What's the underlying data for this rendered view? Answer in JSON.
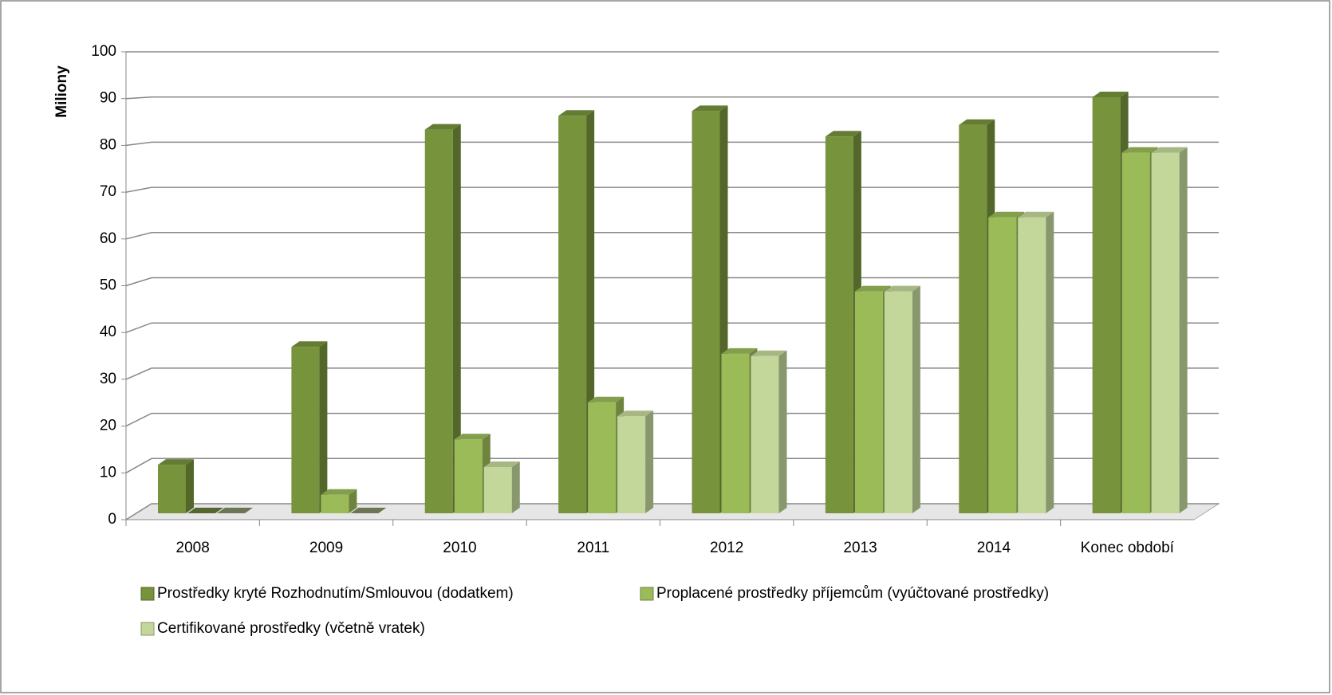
{
  "chart_data": {
    "type": "bar3d",
    "y_label": "Miliony",
    "categories": [
      "2008",
      "2009",
      "2010",
      "2011",
      "2012",
      "2013",
      "2014",
      "Konec období"
    ],
    "series": [
      {
        "name": "Prostředky kryté Rozhodnutím/Smlouvou (dodatkem)",
        "color": "#77933c",
        "values": [
          10.5,
          36,
          83,
          86,
          87,
          81.5,
          84,
          90
        ]
      },
      {
        "name": "Proplacené prostředky příjemcům (vyúčtované prostředky)",
        "color": "#9bbb59",
        "values": [
          0,
          4,
          16,
          24,
          34.5,
          48,
          64,
          78
        ]
      },
      {
        "name": "Certifikované prostředky (včetně vratek)",
        "color": "#c4d79b",
        "values": [
          0,
          0,
          10,
          21,
          34,
          48,
          64,
          78
        ]
      }
    ],
    "ylim": [
      0,
      100
    ],
    "yticks": [
      0,
      10,
      20,
      30,
      40,
      50,
      60,
      70,
      80,
      90,
      100
    ],
    "grid": true,
    "legend": "bottom"
  }
}
